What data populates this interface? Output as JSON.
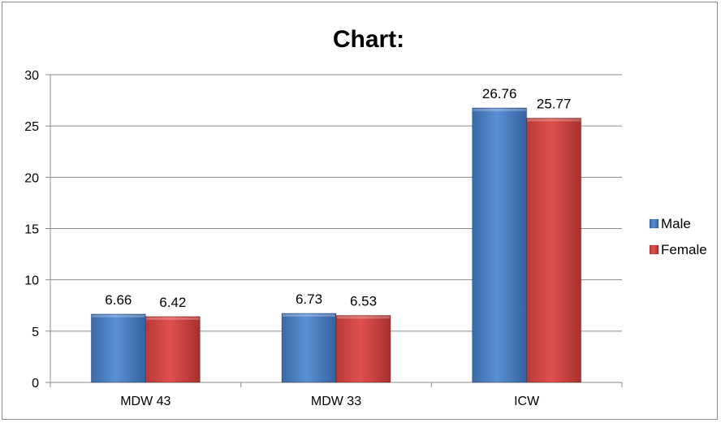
{
  "chart_data": {
    "type": "bar",
    "title": "Chart:",
    "xlabel": "",
    "ylabel": "",
    "categories": [
      "MDW 43",
      "MDW 33",
      "ICW"
    ],
    "series": [
      {
        "name": "Male",
        "values": [
          6.66,
          6.73,
          26.76
        ],
        "color": "#4f81bd"
      },
      {
        "name": "Female",
        "values": [
          6.42,
          6.53,
          25.77
        ],
        "color": "#c0504d"
      }
    ],
    "ylim": [
      0,
      30
    ],
    "yticks": [
      0,
      5,
      10,
      15,
      20,
      25,
      30
    ],
    "grid": true,
    "legend_position": "right",
    "data_labels": [
      "6.66",
      "6.73",
      "26.76",
      "6.42",
      "6.53",
      "25.77"
    ]
  }
}
